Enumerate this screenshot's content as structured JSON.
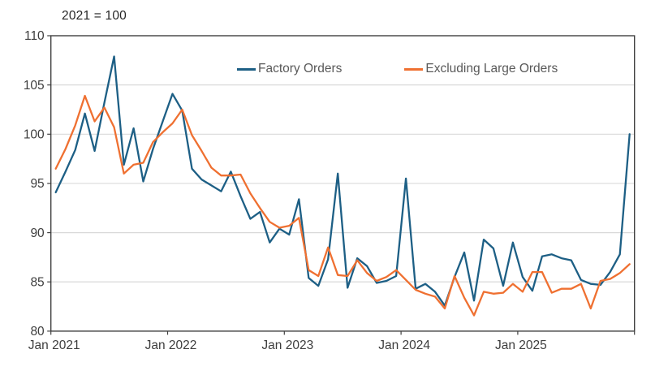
{
  "title": "2021 = 100",
  "legend": {
    "items": [
      {
        "label": "Factory Orders",
        "color": "#1d5f85"
      },
      {
        "label": "Excluding Large Orders",
        "color": "#ef7031"
      }
    ]
  },
  "colors": {
    "background": "#ffffff",
    "plot_border": "#404040",
    "gridline": "#d9d9d9",
    "tick": "#404040",
    "axis_text": "#3d3d3d",
    "legend_text": "#595959",
    "title_text": "#262626",
    "series_blue": "#1d5f85",
    "series_orange": "#ef7031"
  },
  "axes": {
    "y": {
      "min": 80,
      "max": 110,
      "step": 5,
      "tick_labels": [
        "80",
        "85",
        "90",
        "95",
        "100",
        "105",
        "110"
      ]
    },
    "x": {
      "tick_labels": [
        "Jan 2021",
        "Jan 2022",
        "Jan 2023",
        "Jan 2024",
        "Jan 2025"
      ]
    }
  },
  "chart_data": {
    "type": "line",
    "title": "2021 = 100",
    "xlabel": "",
    "ylabel": "",
    "ylim": [
      80,
      110
    ],
    "grid": "horizontal",
    "legend_position": "top-center-inside",
    "x": [
      "2021-01",
      "2021-02",
      "2021-03",
      "2021-04",
      "2021-05",
      "2021-06",
      "2021-07",
      "2021-08",
      "2021-09",
      "2021-10",
      "2021-11",
      "2021-12",
      "2022-01",
      "2022-02",
      "2022-03",
      "2022-04",
      "2022-05",
      "2022-06",
      "2022-07",
      "2022-08",
      "2022-09",
      "2022-10",
      "2022-11",
      "2022-12",
      "2023-01",
      "2023-02",
      "2023-03",
      "2023-04",
      "2023-05",
      "2023-06",
      "2023-07",
      "2023-08",
      "2023-09",
      "2023-10",
      "2023-11",
      "2023-12",
      "2024-01",
      "2024-02",
      "2024-03",
      "2024-04",
      "2024-05",
      "2024-06",
      "2024-07",
      "2024-08",
      "2024-09",
      "2024-10",
      "2024-11",
      "2024-12",
      "2025-01",
      "2025-02",
      "2025-03",
      "2025-04",
      "2025-05",
      "2025-06",
      "2025-07",
      "2025-08",
      "2025-09",
      "2025-10",
      "2025-11",
      "2025-12"
    ],
    "series": [
      {
        "name": "Factory Orders",
        "color": "#1d5f85",
        "values": [
          94.1,
          96.2,
          98.4,
          102.1,
          98.3,
          103.2,
          107.9,
          96.9,
          100.6,
          95.2,
          98.5,
          101.3,
          104.1,
          102.4,
          96.5,
          95.4,
          94.8,
          94.2,
          96.2,
          93.7,
          91.4,
          92.1,
          89.0,
          90.4,
          89.8,
          93.4,
          85.4,
          84.6,
          87.3,
          96.0,
          84.4,
          87.4,
          86.6,
          84.9,
          85.1,
          85.6,
          95.5,
          84.3,
          84.8,
          84.0,
          82.6,
          85.5,
          88.0,
          83.1,
          89.3,
          88.4,
          84.6,
          89.0,
          85.5,
          84.1,
          87.6,
          87.8,
          87.4,
          87.2,
          85.2,
          84.8,
          84.7,
          86.0,
          87.8,
          100.0
        ]
      },
      {
        "name": "Excluding Large Orders",
        "color": "#ef7031",
        "values": [
          96.5,
          98.5,
          100.9,
          103.9,
          101.3,
          102.7,
          100.7,
          96.0,
          96.9,
          97.1,
          99.2,
          100.2,
          101.1,
          102.5,
          99.9,
          98.3,
          96.6,
          95.8,
          95.8,
          95.9,
          94.0,
          92.5,
          91.1,
          90.5,
          90.7,
          91.5,
          86.2,
          85.6,
          88.5,
          85.7,
          85.6,
          87.2,
          85.9,
          85.1,
          85.5,
          86.2,
          85.2,
          84.2,
          83.8,
          83.5,
          82.3,
          85.6,
          83.4,
          81.6,
          84.0,
          83.8,
          83.9,
          84.8,
          84.0,
          86.0,
          86.0,
          83.9,
          84.3,
          84.3,
          84.8,
          82.3,
          85.1,
          85.3,
          85.9,
          86.8
        ]
      }
    ]
  }
}
